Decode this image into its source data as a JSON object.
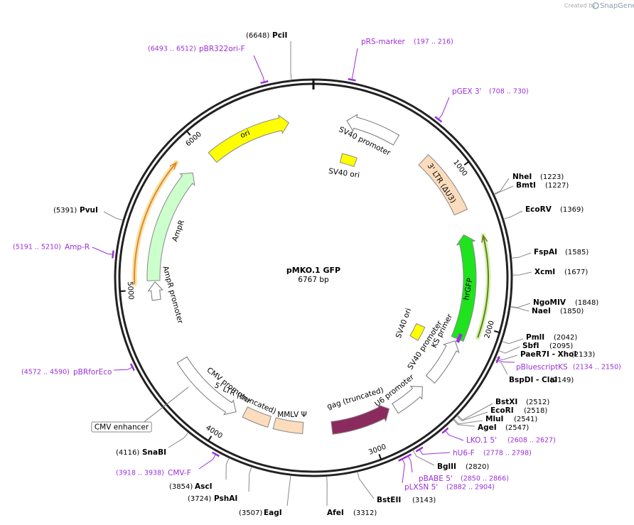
{
  "title": "pMKO.1 GFP",
  "size": {
    "value": 6767,
    "label": "6767 bp"
  },
  "ticks": [
    1000,
    2000,
    3000,
    4000,
    5000,
    6000
  ],
  "site_color": "#000000",
  "primer_color": "#9b30d9",
  "sites": [
    {
      "name": "PciI",
      "position": {
        "value": 6648,
        "label": "(6648)"
      }
    },
    {
      "name": "NheI",
      "position": {
        "value": 1223,
        "label": "(1223)"
      }
    },
    {
      "name": "BmtI",
      "position": {
        "value": 1227,
        "label": "(1227)"
      }
    },
    {
      "name": "EcoRV",
      "position": {
        "value": 1369,
        "label": "(1369)"
      }
    },
    {
      "name": "FspAI",
      "position": {
        "value": 1585,
        "label": "(1585)"
      }
    },
    {
      "name": "XcmI",
      "position": {
        "value": 1677,
        "label": "(1677)"
      }
    },
    {
      "name": "NgoMIV",
      "position": {
        "value": 1848,
        "label": "(1848)"
      }
    },
    {
      "name": "NaeI",
      "position": {
        "value": 1850,
        "label": "(1850)"
      }
    },
    {
      "name": "PmlI",
      "position": {
        "value": 2042,
        "label": "(2042)"
      }
    },
    {
      "name": "SbfI",
      "position": {
        "value": 2095,
        "label": "(2095)"
      }
    },
    {
      "name": "PaeR7I - XhoI",
      "position": {
        "value": 2133,
        "label": "(2133)"
      }
    },
    {
      "name": "BspDI - ClaI",
      "position": {
        "value": 2149,
        "label": "(2149)"
      }
    },
    {
      "name": "BstXI",
      "position": {
        "value": 2512,
        "label": "(2512)"
      }
    },
    {
      "name": "EcoRI",
      "position": {
        "value": 2518,
        "label": "(2518)"
      }
    },
    {
      "name": "MluI",
      "position": {
        "value": 2541,
        "label": "(2541)"
      }
    },
    {
      "name": "AgeI",
      "position": {
        "value": 2547,
        "label": "(2547)"
      }
    },
    {
      "name": "BglII",
      "position": {
        "value": 2820,
        "label": "(2820)"
      }
    },
    {
      "name": "BstEII",
      "position": {
        "value": 3143,
        "label": "(3143)"
      }
    },
    {
      "name": "AfeI",
      "position": {
        "value": 3312,
        "label": "(3312)"
      }
    },
    {
      "name": "EagI",
      "position": {
        "value": 3507,
        "label": "(3507)"
      }
    },
    {
      "name": "PshAI",
      "position": {
        "value": 3724,
        "label": "(3724)"
      }
    },
    {
      "name": "AscI",
      "position": {
        "value": 3854,
        "label": "(3854)"
      }
    },
    {
      "name": "SnaBI",
      "position": {
        "value": 4116,
        "label": "(4116)"
      }
    },
    {
      "name": "PvuI",
      "position": {
        "value": 5391,
        "label": "(5391)"
      }
    }
  ],
  "primers": [
    {
      "name": "pBR322ori-F",
      "start": 6493,
      "end": 6512,
      "label": "(6493 .. 6512)"
    },
    {
      "name": "pRS-marker",
      "start": 197,
      "end": 216,
      "label": "(197 .. 216)"
    },
    {
      "name": "pGEX 3'",
      "start": 708,
      "end": 730,
      "label": "(708 .. 730)"
    },
    {
      "name": "pBluescriptKS",
      "start": 2134,
      "end": 2150,
      "label": "(2134 .. 2150)"
    },
    {
      "name": "LKO.1 5'",
      "start": 2608,
      "end": 2627,
      "label": "(2608 .. 2627)"
    },
    {
      "name": "hU6-F",
      "start": 2778,
      "end": 2798,
      "label": "(2778 .. 2798)"
    },
    {
      "name": "pBABE 5'",
      "start": 2850,
      "end": 2866,
      "label": "(2850 .. 2866)"
    },
    {
      "name": "pLXSN 5'",
      "start": 2882,
      "end": 2904,
      "label": "(2882 .. 2904)"
    },
    {
      "name": "CMV-F",
      "start": 3918,
      "end": 3938,
      "label": "(3918 .. 3938)"
    },
    {
      "name": "pBRforEco",
      "start": 4572,
      "end": 4590,
      "label": "(4572 .. 4590)"
    },
    {
      "name": "Amp-R",
      "start": 5191,
      "end": 5210,
      "label": "(5191 .. 5210)"
    }
  ],
  "features": [
    {
      "name": "ori",
      "color": "#ffff00"
    },
    {
      "name": "SV40 promoter",
      "color": "#ffffff"
    },
    {
      "name": "SV40 ori",
      "color": "#ffff00"
    },
    {
      "name": "3' LTR (ΔU3)",
      "color": "#fbdcbc"
    },
    {
      "name": "hrGFP",
      "color": "#1ee31e"
    },
    {
      "name": "SV40 ori",
      "color": "#ffff00"
    },
    {
      "name": "SV40 promoter",
      "color": "#ffffff"
    },
    {
      "name": "KS primer",
      "color": "#9b30d9"
    },
    {
      "name": "U6 promoter",
      "color": "#ffffff"
    },
    {
      "name": "gag (truncated)",
      "color": "#8b2a5f"
    },
    {
      "name": "MMLV Ψ",
      "color": "#fbdcbc"
    },
    {
      "name": "5' LTR (truncated)",
      "color": "#fbdcbc"
    },
    {
      "name": "CMV promoter",
      "color": "#ffffff"
    },
    {
      "name": "CMV enhancer",
      "color": "#ffffff"
    },
    {
      "name": "AmpR promoter",
      "color": "#ffffff"
    },
    {
      "name": "AmpR",
      "color": "#ccffcc"
    }
  ],
  "watermark": {
    "prefix": "Created by",
    "brand": "SnapGene"
  }
}
